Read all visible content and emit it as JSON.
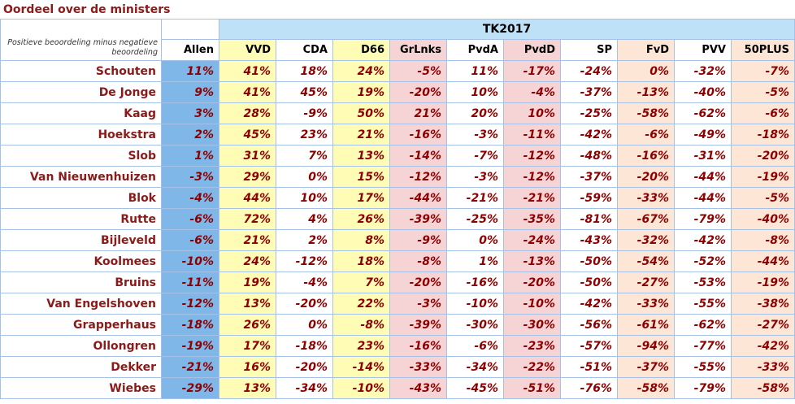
{
  "title": "Oordeel over de ministers",
  "chart_data": {
    "type": "table",
    "title": "Oordeel over de ministers",
    "subtitle": "Positieve beoordeling minus negatieve beoordeling",
    "group_header": "TK2017",
    "columns": [
      "Allen",
      "VVD",
      "CDA",
      "D66",
      "GrLnks",
      "PvdA",
      "PvdD",
      "SP",
      "FvD",
      "PVV",
      "50PLUS"
    ],
    "column_groups": {
      "Allen": "blue",
      "VVD": "yellow",
      "CDA": "white",
      "D66": "yellow",
      "GrLnks": "pink",
      "PvdA": "white",
      "PvdD": "pink",
      "SP": "white",
      "FvD": "peach",
      "PVV": "white",
      "50PLUS": "peach"
    },
    "colors": {
      "blue": "#7fb7e8",
      "yellow": "#fefcb5",
      "pink": "#f6d4d6",
      "peach": "#fde6d6",
      "header": "#bfe1f8",
      "text": "#8b0000"
    },
    "rows": [
      {
        "name": "Schouten",
        "values": [
          "11%",
          "41%",
          "18%",
          "24%",
          "-5%",
          "11%",
          "-17%",
          "-24%",
          "0%",
          "-32%",
          "-7%"
        ]
      },
      {
        "name": "De Jonge",
        "values": [
          "9%",
          "41%",
          "45%",
          "19%",
          "-20%",
          "10%",
          "-4%",
          "-37%",
          "-13%",
          "-40%",
          "-5%"
        ]
      },
      {
        "name": "Kaag",
        "values": [
          "3%",
          "28%",
          "-9%",
          "50%",
          "21%",
          "20%",
          "10%",
          "-25%",
          "-58%",
          "-62%",
          "-6%"
        ]
      },
      {
        "name": "Hoekstra",
        "values": [
          "2%",
          "45%",
          "23%",
          "21%",
          "-16%",
          "-3%",
          "-11%",
          "-42%",
          "-6%",
          "-49%",
          "-18%"
        ]
      },
      {
        "name": "Slob",
        "values": [
          "1%",
          "31%",
          "7%",
          "13%",
          "-14%",
          "-7%",
          "-12%",
          "-48%",
          "-16%",
          "-31%",
          "-20%"
        ]
      },
      {
        "name": "Van Nieuwenhuizen",
        "values": [
          "-3%",
          "29%",
          "0%",
          "15%",
          "-12%",
          "-3%",
          "-12%",
          "-37%",
          "-20%",
          "-44%",
          "-19%"
        ]
      },
      {
        "name": "Blok",
        "values": [
          "-4%",
          "44%",
          "10%",
          "17%",
          "-44%",
          "-21%",
          "-21%",
          "-59%",
          "-33%",
          "-44%",
          "-5%"
        ]
      },
      {
        "name": "Rutte",
        "values": [
          "-6%",
          "72%",
          "4%",
          "26%",
          "-39%",
          "-25%",
          "-35%",
          "-81%",
          "-67%",
          "-79%",
          "-40%"
        ]
      },
      {
        "name": "Bijleveld",
        "values": [
          "-6%",
          "21%",
          "2%",
          "8%",
          "-9%",
          "0%",
          "-24%",
          "-43%",
          "-32%",
          "-42%",
          "-8%"
        ]
      },
      {
        "name": "Koolmees",
        "values": [
          "-10%",
          "24%",
          "-12%",
          "18%",
          "-8%",
          "1%",
          "-13%",
          "-50%",
          "-54%",
          "-52%",
          "-44%"
        ]
      },
      {
        "name": "Bruins",
        "values": [
          "-11%",
          "19%",
          "-4%",
          "7%",
          "-20%",
          "-16%",
          "-20%",
          "-50%",
          "-27%",
          "-53%",
          "-19%"
        ]
      },
      {
        "name": "Van Engelshoven",
        "values": [
          "-12%",
          "13%",
          "-20%",
          "22%",
          "-3%",
          "-10%",
          "-10%",
          "-42%",
          "-33%",
          "-55%",
          "-38%"
        ]
      },
      {
        "name": "Grapperhaus",
        "values": [
          "-18%",
          "26%",
          "0%",
          "-8%",
          "-39%",
          "-30%",
          "-30%",
          "-56%",
          "-61%",
          "-62%",
          "-27%"
        ]
      },
      {
        "name": "Ollongren",
        "values": [
          "-19%",
          "17%",
          "-18%",
          "23%",
          "-16%",
          "-6%",
          "-23%",
          "-57%",
          "-94%",
          "-77%",
          "-42%"
        ]
      },
      {
        "name": "Dekker",
        "values": [
          "-21%",
          "16%",
          "-20%",
          "-14%",
          "-33%",
          "-34%",
          "-22%",
          "-51%",
          "-37%",
          "-55%",
          "-33%"
        ]
      },
      {
        "name": "Wiebes",
        "values": [
          "-29%",
          "13%",
          "-34%",
          "-10%",
          "-43%",
          "-45%",
          "-51%",
          "-76%",
          "-58%",
          "-79%",
          "-58%"
        ]
      }
    ]
  }
}
